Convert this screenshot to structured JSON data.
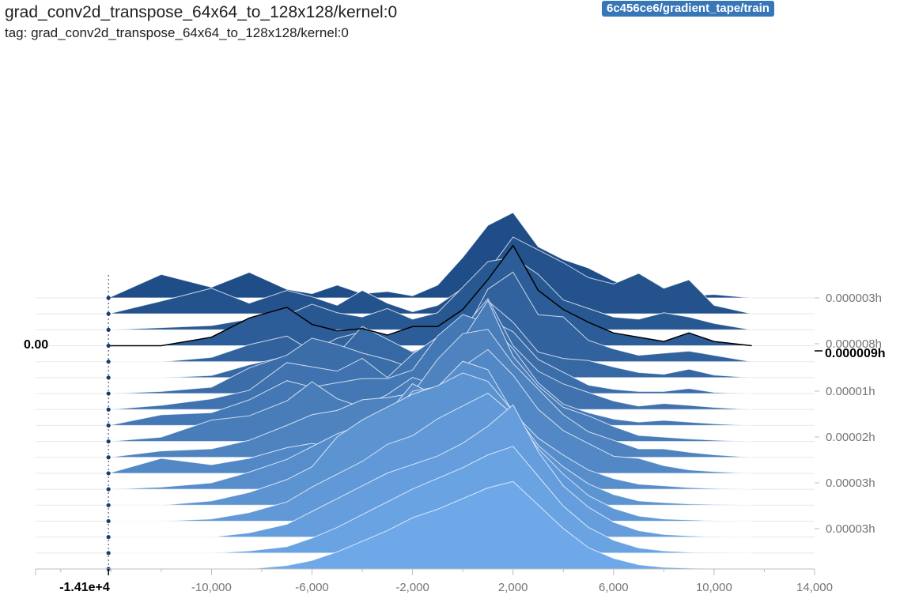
{
  "header": {
    "title": "grad_conv2d_transpose_64x64_to_128x128/kernel:0",
    "tag": "tag: grad_conv2d_transpose_64x64_to_128x128/kernel:0",
    "run": "6c456ce6/gradient_tape/train"
  },
  "colors": {
    "oldest": "#1e4d87",
    "newest": "#6fa8e8",
    "highlight_line": "#000000",
    "ridge_stroke": "#ffffff",
    "badge": "#3776b7",
    "axis": "#bdbdbd",
    "grid": "#e8e8e8",
    "tick_text": "#757575"
  },
  "chart_data": {
    "type": "histogram",
    "mode": "offset",
    "xlabel": "",
    "ylabel": "",
    "xlim": [
      -17000,
      14000
    ],
    "x_ticks": [
      -10000,
      -6000,
      -2000,
      2000,
      6000,
      10000,
      14000
    ],
    "x_tick_labels": [
      "-10,000",
      "-6,000",
      "-2,000",
      "2,000",
      "6,000",
      "10,000",
      "14,000"
    ],
    "y_ticks": [
      "0.000003h",
      "0.000008h",
      "0.00001h",
      "0.00002h",
      "0.00003h",
      "0.00003h"
    ],
    "hover": {
      "x_label": "-1.41e+4",
      "count_label": "0.00",
      "step_label": "0.000009h"
    },
    "bin_x": [
      -14100,
      -12000,
      -10000,
      -8500,
      -7000,
      -6000,
      -5000,
      -4000,
      -3000,
      -2000,
      -1000,
      0,
      1000,
      2000,
      3000,
      4000,
      5000,
      6000,
      7000,
      8000,
      9000,
      10000,
      11500
    ],
    "series": [
      {
        "values": [
          0,
          55,
          25,
          60,
          20,
          10,
          30,
          10,
          15,
          5,
          30,
          95,
          170,
          200,
          120,
          90,
          70,
          40,
          20,
          10,
          5,
          8,
          0
        ]
      },
      {
        "values": [
          0,
          30,
          60,
          25,
          55,
          40,
          20,
          55,
          25,
          5,
          20,
          60,
          100,
          180,
          150,
          120,
          85,
          70,
          95,
          60,
          80,
          20,
          0
        ]
      },
      {
        "values": [
          0,
          5,
          10,
          25,
          35,
          60,
          40,
          30,
          50,
          25,
          40,
          100,
          160,
          170,
          130,
          70,
          50,
          30,
          25,
          40,
          30,
          15,
          0
        ]
      },
      {
        "values": [
          0,
          0,
          20,
          65,
          90,
          50,
          35,
          40,
          25,
          45,
          45,
          85,
          155,
          235,
          130,
          85,
          55,
          30,
          20,
          10,
          30,
          10,
          0
        ]
      },
      {
        "values": [
          0,
          0,
          10,
          40,
          60,
          25,
          55,
          70,
          45,
          25,
          40,
          60,
          170,
          210,
          110,
          105,
          50,
          30,
          15,
          20,
          25,
          15,
          0
        ]
      },
      {
        "values": [
          0,
          0,
          5,
          30,
          50,
          80,
          55,
          120,
          90,
          60,
          75,
          50,
          180,
          130,
          60,
          45,
          40,
          25,
          12,
          8,
          20,
          6,
          0
        ]
      },
      {
        "values": [
          0,
          5,
          15,
          60,
          90,
          130,
          115,
          95,
          80,
          60,
          55,
          140,
          175,
          145,
          80,
          50,
          20,
          10,
          5,
          5,
          12,
          3,
          0
        ]
      },
      {
        "values": [
          0,
          10,
          25,
          45,
          110,
          100,
          90,
          120,
          75,
          130,
          170,
          190,
          260,
          150,
          90,
          60,
          40,
          20,
          8,
          14,
          10,
          5,
          0
        ]
      },
      {
        "values": [
          0,
          25,
          30,
          60,
          105,
          90,
          100,
          110,
          110,
          130,
          210,
          260,
          240,
          180,
          100,
          50,
          30,
          15,
          8,
          12,
          8,
          4,
          0
        ]
      },
      {
        "values": [
          0,
          10,
          50,
          60,
          95,
          140,
          100,
          80,
          110,
          150,
          130,
          240,
          330,
          200,
          130,
          80,
          60,
          35,
          14,
          10,
          6,
          3,
          0
        ]
      },
      {
        "values": [
          0,
          15,
          20,
          40,
          75,
          100,
          110,
          135,
          140,
          150,
          230,
          290,
          300,
          220,
          160,
          100,
          60,
          40,
          20,
          20,
          12,
          6,
          0
        ]
      },
      {
        "values": [
          0,
          35,
          20,
          35,
          60,
          70,
          60,
          90,
          140,
          210,
          180,
          250,
          290,
          230,
          150,
          100,
          70,
          40,
          35,
          18,
          8,
          4,
          0
        ]
      },
      {
        "values": [
          0,
          5,
          15,
          40,
          70,
          100,
          130,
          150,
          160,
          230,
          240,
          300,
          280,
          180,
          120,
          80,
          45,
          25,
          12,
          8,
          4,
          2,
          0
        ]
      },
      {
        "values": [
          0,
          0,
          10,
          30,
          60,
          90,
          160,
          200,
          230,
          260,
          280,
          310,
          290,
          220,
          140,
          90,
          50,
          25,
          10,
          6,
          3,
          2,
          0
        ]
      },
      {
        "values": [
          0,
          0,
          5,
          20,
          45,
          80,
          110,
          140,
          180,
          200,
          240,
          270,
          300,
          250,
          170,
          110,
          60,
          30,
          12,
          5,
          3,
          1,
          0
        ]
      },
      {
        "values": [
          0,
          0,
          0,
          10,
          30,
          60,
          90,
          120,
          150,
          170,
          190,
          220,
          260,
          310,
          200,
          120,
          70,
          35,
          15,
          6,
          3,
          1,
          0
        ]
      },
      {
        "values": [
          0,
          0,
          0,
          5,
          15,
          35,
          60,
          90,
          120,
          150,
          175,
          200,
          230,
          250,
          180,
          110,
          60,
          30,
          12,
          5,
          2,
          1,
          0
        ]
      },
      {
        "values": [
          0,
          0,
          0,
          0,
          8,
          20,
          40,
          65,
          90,
          120,
          140,
          165,
          190,
          205,
          150,
          95,
          50,
          25,
          10,
          4,
          2,
          0,
          0
        ]
      }
    ],
    "highlight_series_index": 3
  }
}
